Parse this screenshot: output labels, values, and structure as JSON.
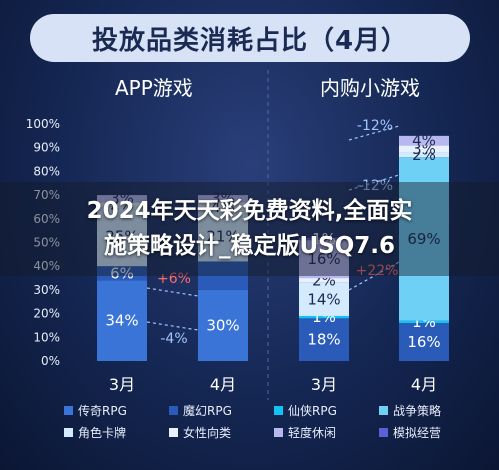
{
  "title": "投放品类消耗占比（4月）",
  "overlay_text": {
    "line1": "2024年天天彩免费资料,全面实",
    "line2": "施策略设计_稳定版USQ7.6"
  },
  "chart_data": {
    "type": "bar",
    "stacked": true,
    "groups": [
      "APP游戏",
      "内购小游戏"
    ],
    "categories": [
      "3月",
      "4月",
      "3月",
      "4月"
    ],
    "ylim": [
      0,
      100
    ],
    "yticks": [
      "0%",
      "10%",
      "20%",
      "30%",
      "40%",
      "50%",
      "60%",
      "70%",
      "80%",
      "90%",
      "100%"
    ],
    "series": [
      {
        "name": "传奇RPG",
        "color": "#3a74d6",
        "values": [
          34,
          30,
          0,
          0
        ],
        "labels": [
          "34%",
          "30%",
          "",
          ""
        ]
      },
      {
        "name": "魔幻RPG",
        "color": "#2a5bb8",
        "values": [
          6,
          12,
          18,
          16
        ],
        "labels": [
          "6%",
          "",
          "18%",
          "16%"
        ]
      },
      {
        "name": "仙侠RPG",
        "color": "#12c2f2",
        "values": [
          0,
          0,
          1,
          1
        ],
        "labels": [
          "",
          "",
          "1%",
          "1%"
        ]
      },
      {
        "name": "战争策略",
        "color": "#6fd0f6",
        "values": [
          0,
          0,
          0,
          69
        ],
        "labels": [
          "",
          "",
          "",
          "69%"
        ]
      },
      {
        "name": "角色卡牌",
        "color": "#d4ebff",
        "values": [
          25,
          21,
          14,
          2
        ],
        "labels": [
          "25%",
          "21%",
          "14%",
          "2%"
        ]
      },
      {
        "name": "女性向类",
        "color": "#e9f1ff",
        "values": [
          2,
          4,
          2,
          3
        ],
        "labels": [
          "2%",
          "4%",
          "2%",
          "3%"
        ]
      },
      {
        "name": "轻度休闲",
        "color": "#b8b8f0",
        "values": [
          3,
          3,
          16,
          4
        ],
        "labels": [
          "3%",
          "3%",
          "16%",
          "4%"
        ]
      },
      {
        "name": "模拟经营",
        "color": "#5d5fd8",
        "values": [
          0,
          0,
          1,
          0
        ],
        "labels": [
          "",
          "",
          "1%",
          ""
        ]
      }
    ],
    "annotations": [
      {
        "text": "-4%",
        "color": "#9fc4ff"
      },
      {
        "text": "+6%",
        "color": "#ff6b6b"
      },
      {
        "text": "-12%",
        "color": "#9fc4ff"
      },
      {
        "text": "-12%",
        "color": "#9fc4ff"
      },
      {
        "text": "+22%",
        "color": "#ff6b6b"
      }
    ]
  }
}
